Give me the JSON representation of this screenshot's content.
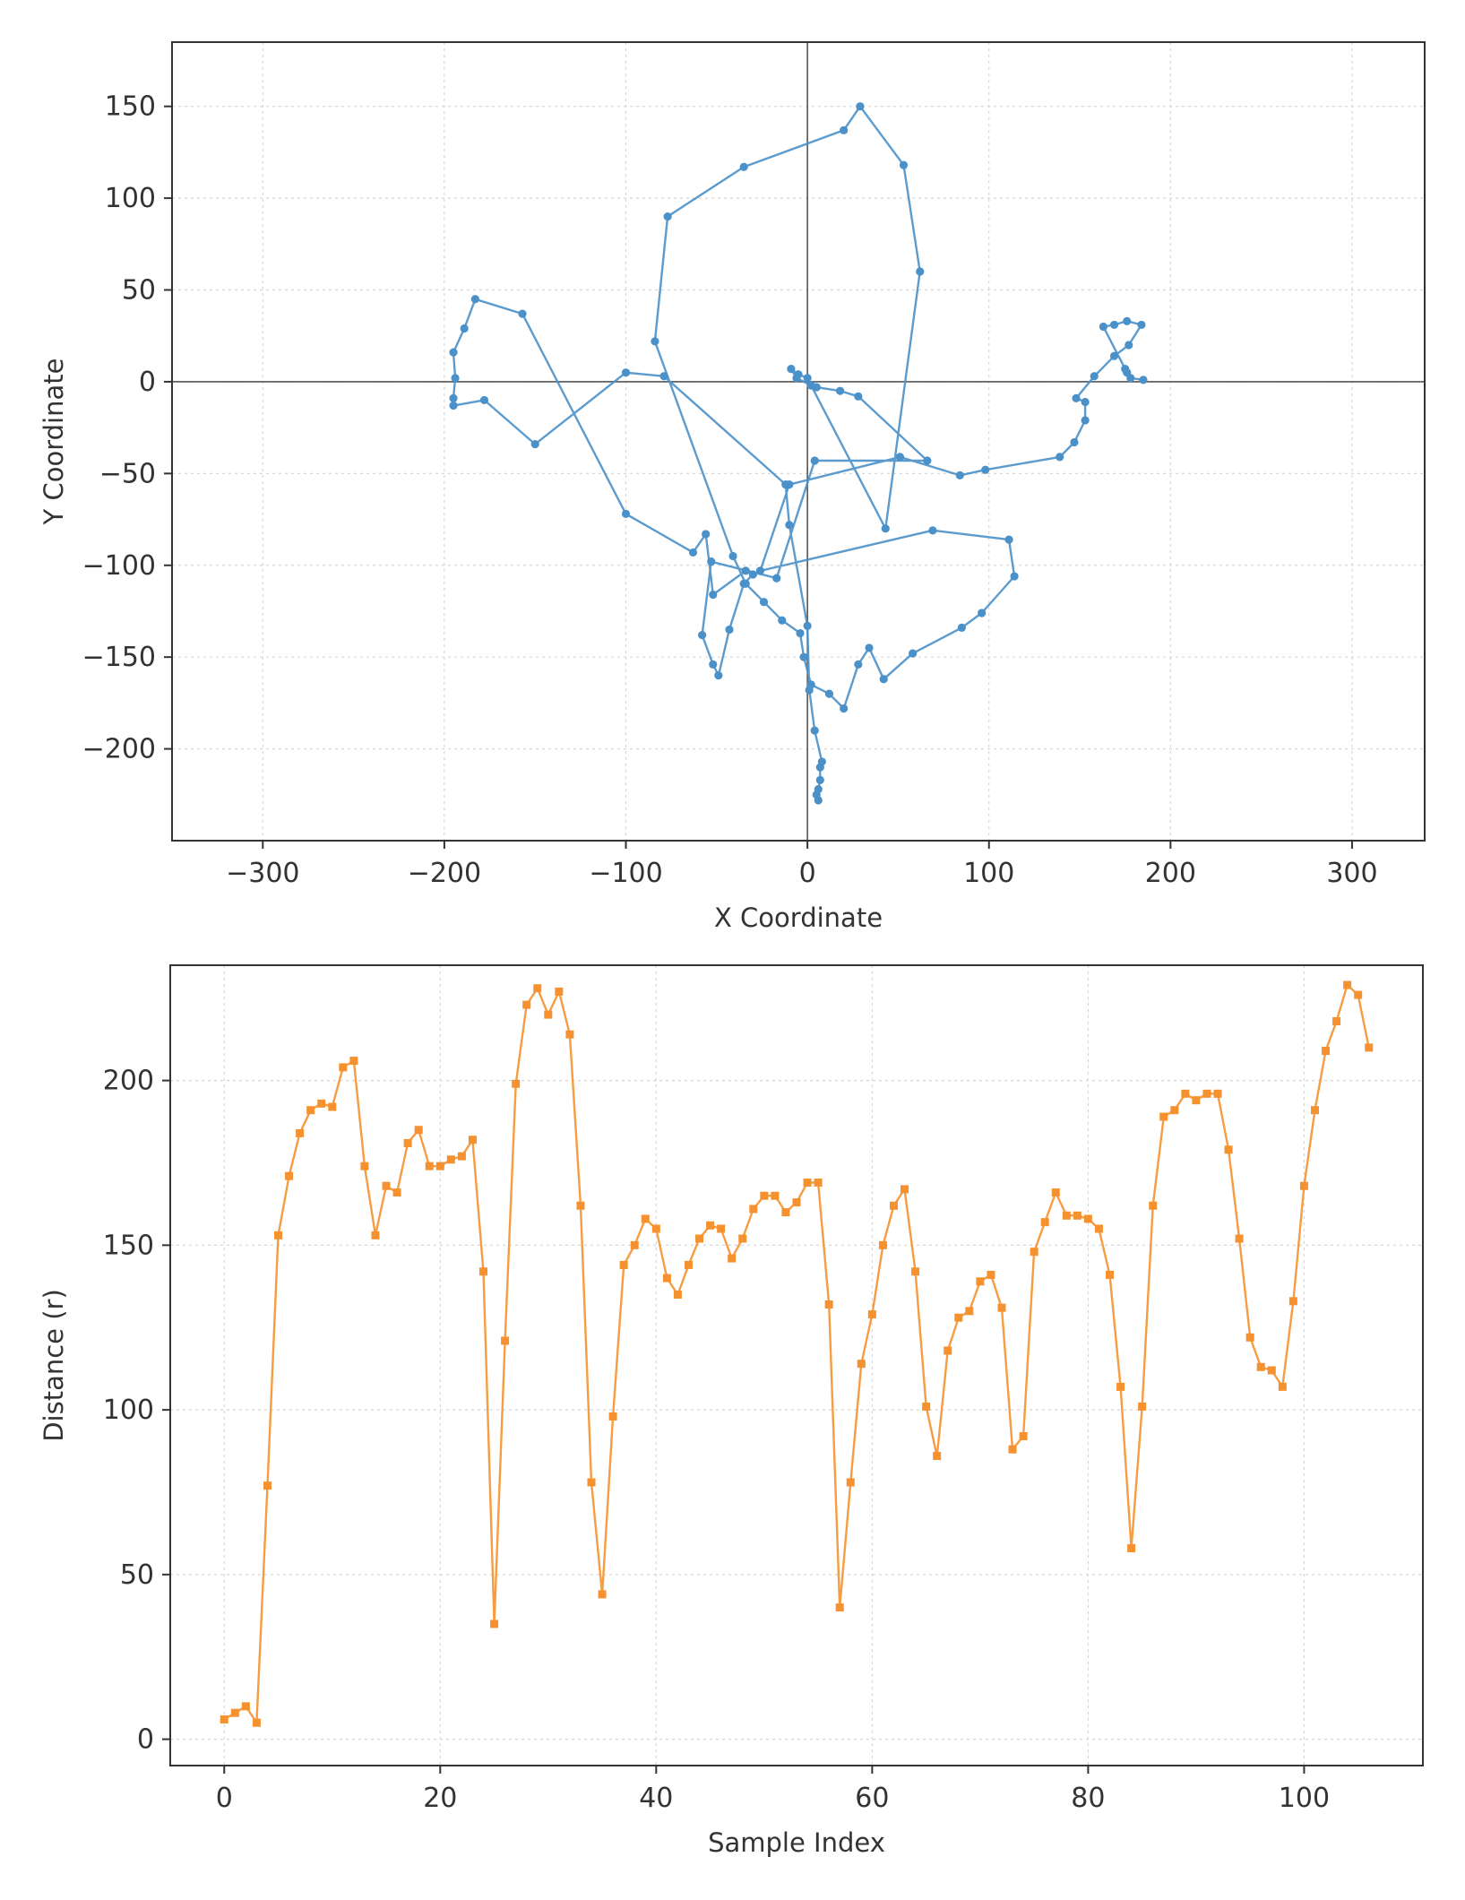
{
  "chart_data": [
    {
      "type": "line",
      "xlabel": "X Coordinate",
      "ylabel": "Y Coordinate",
      "xlim": [
        -350,
        340
      ],
      "ylim": [
        -250,
        185
      ],
      "xticks": [
        -300,
        -200,
        -100,
        0,
        100,
        200,
        300
      ],
      "yticks": [
        -200,
        -150,
        -100,
        -50,
        0,
        50,
        100,
        150
      ],
      "xtick_labels": [
        "−300",
        "−200",
        "−100",
        "0",
        "100",
        "200",
        "300"
      ],
      "ytick_labels": [
        "−200",
        "−150",
        "−100",
        "−50",
        "0",
        "50",
        "100",
        "150"
      ],
      "grid": true,
      "zero_lines": true,
      "color": "#4a90c9",
      "series": [
        {
          "points": [
            [
              6,
              -228
            ],
            [
              5,
              -225
            ],
            [
              6,
              -222
            ],
            [
              7,
              -217
            ],
            [
              7,
              -210
            ],
            [
              8,
              -207
            ],
            [
              4,
              -190
            ],
            [
              1,
              -168
            ],
            [
              0,
              -133
            ],
            [
              -10,
              -78
            ],
            [
              -12,
              -56
            ],
            [
              -79,
              3
            ],
            [
              -100,
              5
            ],
            [
              -150,
              -34
            ],
            [
              -178,
              -10
            ],
            [
              -195,
              -13
            ],
            [
              -195,
              -9
            ],
            [
              -194,
              2
            ],
            [
              -195,
              16
            ],
            [
              -189,
              29
            ],
            [
              -183,
              45
            ],
            [
              -157,
              37
            ],
            [
              -100,
              -72
            ],
            [
              -63,
              -93
            ],
            [
              -56,
              -83
            ],
            [
              -52,
              -116
            ],
            [
              -34,
              -103
            ],
            [
              -30,
              -105
            ],
            [
              -35,
              -110
            ],
            [
              -43,
              -135
            ],
            [
              -49,
              -160
            ],
            [
              -52,
              -154
            ],
            [
              -58,
              -138
            ],
            [
              -53,
              -98
            ],
            [
              -17,
              -107
            ],
            [
              4,
              -43
            ],
            [
              66,
              -43
            ],
            [
              28,
              -8
            ],
            [
              18,
              -5
            ],
            [
              5,
              -3
            ],
            [
              2,
              -2
            ],
            [
              -6,
              2
            ],
            [
              -9,
              7
            ],
            [
              -5,
              4
            ],
            [
              0,
              2
            ],
            [
              2,
              -2
            ],
            [
              43,
              -80
            ],
            [
              62,
              60
            ],
            [
              53,
              118
            ],
            [
              29,
              150
            ],
            [
              20,
              137
            ],
            [
              -35,
              117
            ],
            [
              -77,
              90
            ],
            [
              -84,
              22
            ],
            [
              -41,
              -95
            ],
            [
              -34,
              -110
            ],
            [
              -24,
              -120
            ],
            [
              -14,
              -130
            ],
            [
              -4,
              -137
            ],
            [
              -2,
              -150
            ],
            [
              2,
              -165
            ],
            [
              12,
              -170
            ],
            [
              20,
              -178
            ],
            [
              28,
              -154
            ],
            [
              34,
              -145
            ],
            [
              42,
              -162
            ],
            [
              58,
              -148
            ],
            [
              85,
              -134
            ],
            [
              96,
              -126
            ],
            [
              114,
              -106
            ],
            [
              111,
              -86
            ],
            [
              69,
              -81
            ],
            [
              -26,
              -103
            ],
            [
              -10,
              -56
            ],
            [
              51,
              -41
            ],
            [
              84,
              -51
            ],
            [
              98,
              -48
            ],
            [
              139,
              -41
            ],
            [
              147,
              -33
            ],
            [
              153,
              -21
            ],
            [
              153,
              -11
            ],
            [
              148,
              -9
            ],
            [
              158,
              3
            ],
            [
              169,
              14
            ],
            [
              177,
              20
            ],
            [
              184,
              31
            ],
            [
              176,
              33
            ],
            [
              169,
              31
            ],
            [
              163,
              30
            ],
            [
              175,
              7
            ],
            [
              176,
              5
            ],
            [
              178,
              2
            ],
            [
              185,
              1
            ]
          ]
        }
      ]
    },
    {
      "type": "line",
      "xlabel": "Sample Index",
      "ylabel": "Distance (r)",
      "xlim": [
        -5,
        111
      ],
      "ylim": [
        -8,
        235
      ],
      "xticks": [
        0,
        20,
        40,
        60,
        80,
        100
      ],
      "yticks": [
        0,
        50,
        100,
        150,
        200
      ],
      "xtick_labels": [
        "0",
        "20",
        "40",
        "60",
        "80",
        "100"
      ],
      "ytick_labels": [
        "0",
        "50",
        "100",
        "150",
        "200"
      ],
      "grid": true,
      "color": "#f5912e",
      "series": [
        {
          "x": [
            0,
            1,
            2,
            3,
            4,
            5,
            6,
            7,
            8,
            9,
            10,
            11,
            12,
            13,
            14,
            15,
            16,
            17,
            18,
            19,
            20,
            21,
            22,
            23,
            24,
            25,
            26,
            27,
            28,
            29,
            30,
            31,
            32,
            33,
            34,
            35,
            36,
            37,
            38,
            39,
            40,
            41,
            42,
            43,
            44,
            45,
            46,
            47,
            48,
            49,
            50,
            51,
            52,
            53,
            54,
            55,
            56,
            57,
            58,
            59,
            60,
            61,
            62,
            63,
            64,
            65,
            66,
            67,
            68,
            69,
            70,
            71,
            72,
            73,
            74,
            75,
            76,
            77,
            78,
            79,
            80,
            81,
            82,
            83,
            84,
            85,
            86,
            87,
            88,
            89,
            90,
            91,
            92,
            93,
            94,
            95,
            96,
            97,
            98,
            99,
            100,
            101,
            102,
            103,
            104,
            105,
            106
          ],
          "values": [
            6,
            8,
            10,
            5,
            77,
            153,
            171,
            184,
            191,
            193,
            192,
            204,
            206,
            174,
            153,
            168,
            166,
            181,
            185,
            174,
            174,
            176,
            177,
            182,
            142,
            35,
            121,
            199,
            223,
            228,
            220,
            227,
            214,
            162,
            78,
            44,
            98,
            144,
            150,
            158,
            155,
            140,
            135,
            144,
            152,
            156,
            155,
            146,
            152,
            161,
            165,
            165,
            160,
            163,
            169,
            169,
            132,
            40,
            78,
            114,
            129,
            150,
            162,
            167,
            142,
            101,
            86,
            118,
            128,
            130,
            139,
            141,
            131,
            88,
            92,
            148,
            157,
            166,
            159,
            159,
            158,
            155,
            141,
            107,
            58,
            101,
            162,
            189,
            191,
            196,
            194,
            196,
            196,
            179,
            152,
            122,
            113,
            112,
            107,
            133,
            168,
            191,
            209,
            218,
            229,
            226,
            210
          ]
        }
      ]
    }
  ]
}
